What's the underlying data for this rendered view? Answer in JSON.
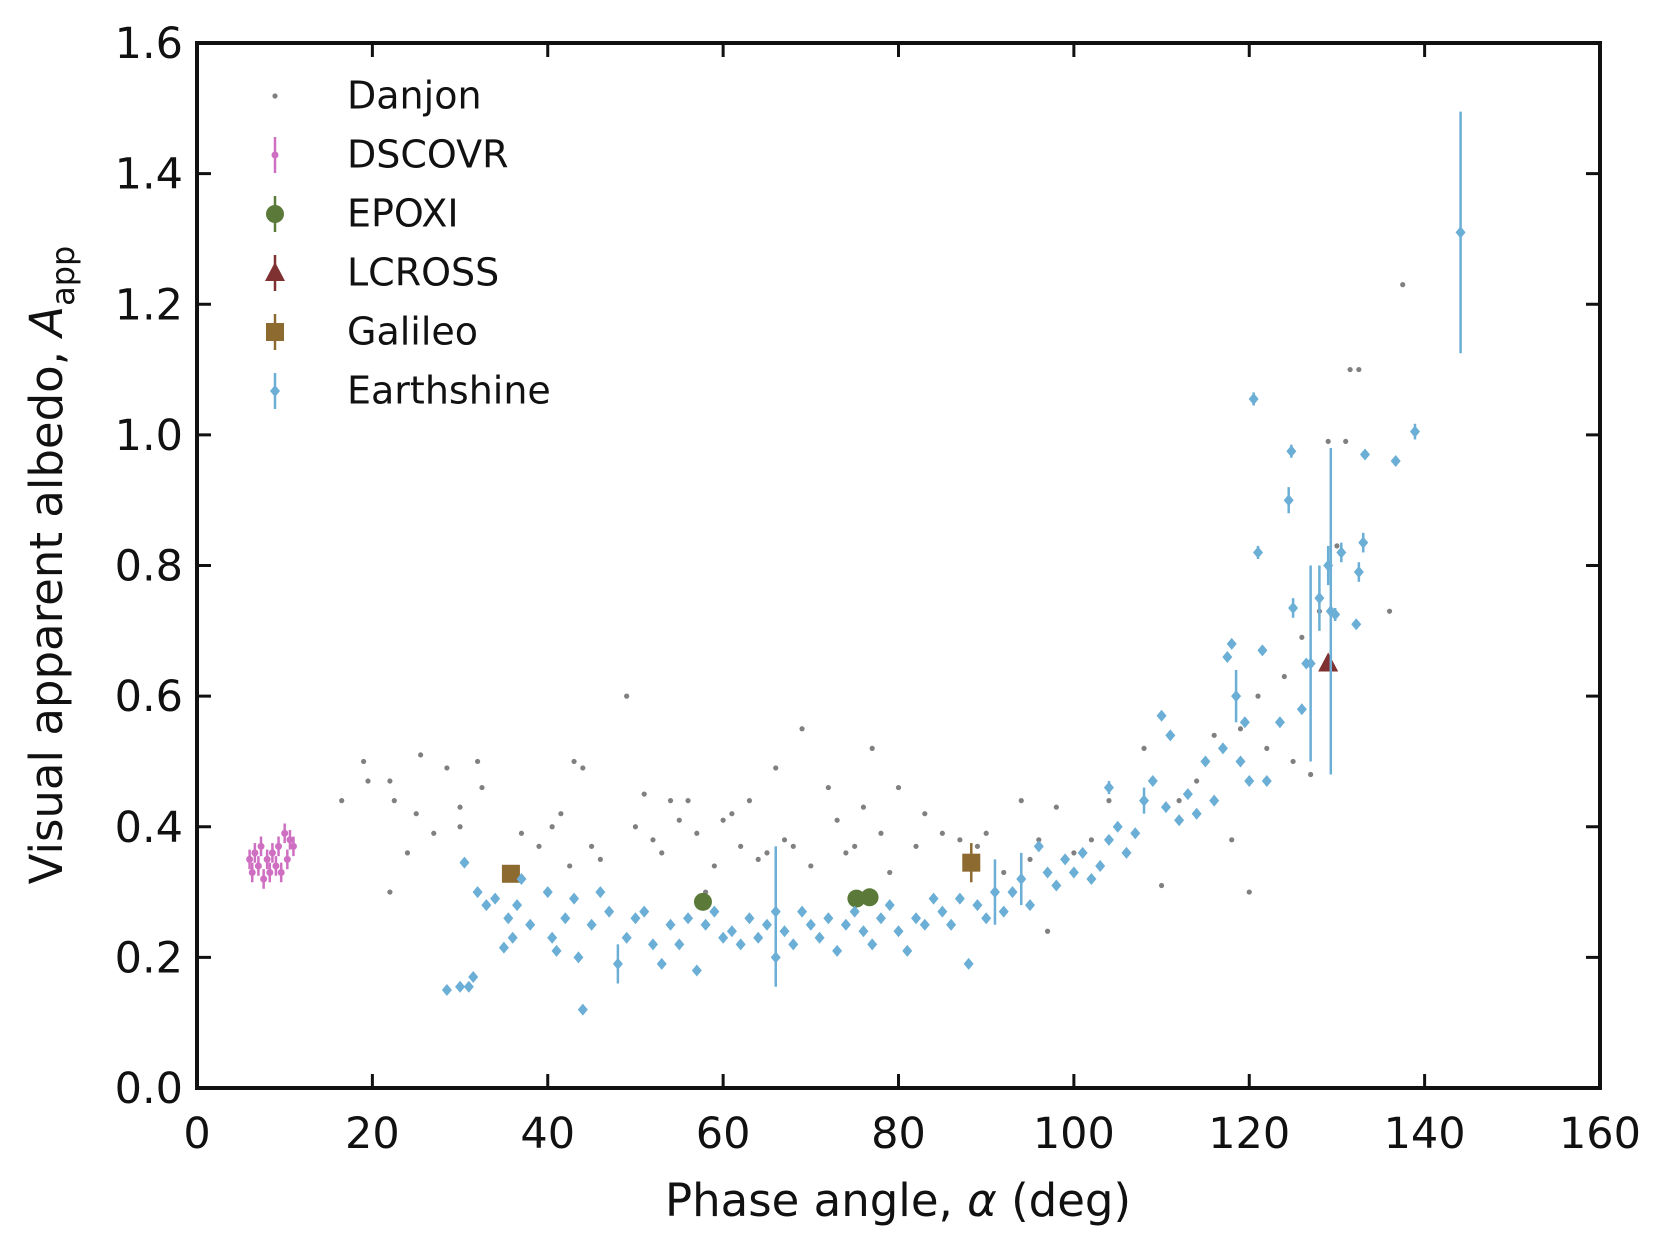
{
  "chart_data": {
    "type": "scatter",
    "xlabel": "Phase angle, ",
    "xlabel_symbol": "α",
    "xlabel_unit": " (deg)",
    "ylabel": "Visual apparent albedo, ",
    "ylabel_symbol": "A",
    "ylabel_subscript": "app",
    "xlim": [
      0,
      160
    ],
    "xticks": [
      0,
      20,
      40,
      60,
      80,
      100,
      120,
      140,
      160
    ],
    "ylim": [
      0,
      1.6
    ],
    "yticks": [
      {
        "value": 0,
        "label": "0.0"
      },
      0.2,
      0.4,
      0.6,
      0.8,
      {
        "value": 1,
        "label": "1.0"
      },
      1.2,
      1.4,
      1.6
    ],
    "tick_direction": "in",
    "legend": "upper left",
    "series": [
      {
        "name": "Danjon",
        "color": "#808080",
        "marker": "dot",
        "x": [
          16.5,
          19,
          19.5,
          22,
          22,
          22.5,
          24,
          25,
          25.5,
          27,
          28.5,
          30,
          30,
          32,
          32.5,
          36,
          37,
          39,
          40.5,
          41.5,
          42.5,
          43,
          44,
          45,
          46,
          49,
          50,
          51,
          52,
          53,
          54,
          55,
          56,
          57,
          58,
          59,
          60,
          61,
          62,
          63,
          64,
          65,
          66,
          67,
          68,
          69,
          70,
          72,
          73,
          74,
          75,
          76,
          77,
          78,
          79,
          80,
          82,
          83,
          85,
          87,
          89,
          90,
          92,
          94,
          95,
          96,
          97,
          98,
          100,
          102,
          104,
          106,
          108,
          110,
          112,
          114,
          116,
          118,
          119,
          120,
          121,
          122,
          124,
          125,
          126,
          127,
          128,
          129,
          130,
          131,
          131.5,
          132.5,
          136,
          137.5
        ],
        "values": [
          0.44,
          0.5,
          0.47,
          0.47,
          0.3,
          0.44,
          0.36,
          0.42,
          0.51,
          0.39,
          0.49,
          0.4,
          0.43,
          0.5,
          0.46,
          0.32,
          0.39,
          0.37,
          0.4,
          0.42,
          0.34,
          0.5,
          0.49,
          0.37,
          0.35,
          0.6,
          0.4,
          0.45,
          0.38,
          0.36,
          0.44,
          0.41,
          0.44,
          0.39,
          0.3,
          0.34,
          0.41,
          0.42,
          0.37,
          0.44,
          0.35,
          0.36,
          0.49,
          0.38,
          0.37,
          0.55,
          0.34,
          0.46,
          0.41,
          0.36,
          0.37,
          0.43,
          0.52,
          0.39,
          0.33,
          0.46,
          0.37,
          0.42,
          0.39,
          0.38,
          0.37,
          0.39,
          0.33,
          0.44,
          0.35,
          0.38,
          0.24,
          0.43,
          0.36,
          0.38,
          0.44,
          0.36,
          0.52,
          0.31,
          0.44,
          0.47,
          0.54,
          0.38,
          0.55,
          0.3,
          0.6,
          0.52,
          0.63,
          0.5,
          0.69,
          0.48,
          0.73,
          0.99,
          0.83,
          0.99,
          1.1,
          1.1,
          0.73,
          1.23
        ]
      },
      {
        "name": "DSCOVR",
        "color": "#cf6fc2",
        "marker": "point",
        "x": [
          6,
          6.3,
          6.6,
          7,
          7.3,
          7.6,
          8,
          8.3,
          8.6,
          9,
          9.3,
          9.6,
          10,
          10.3,
          10.6,
          11
        ],
        "values": [
          0.35,
          0.33,
          0.36,
          0.34,
          0.37,
          0.32,
          0.35,
          0.33,
          0.36,
          0.34,
          0.37,
          0.33,
          0.39,
          0.35,
          0.38,
          0.37
        ],
        "errors": [
          0.015,
          0.015,
          0.015,
          0.015,
          0.015,
          0.015,
          0.015,
          0.015,
          0.015,
          0.015,
          0.015,
          0.015,
          0.015,
          0.015,
          0.015,
          0.015
        ]
      },
      {
        "name": "EPOXI",
        "color": "#5b7a3a",
        "marker": "circle",
        "x": [
          57.7,
          75.2,
          76.7
        ],
        "values": [
          0.285,
          0.29,
          0.292
        ],
        "errors": [
          0.005,
          0.005,
          0.005
        ]
      },
      {
        "name": "LCROSS",
        "color": "#7f3030",
        "marker": "triangle",
        "x": [
          129
        ],
        "values": [
          0.65
        ],
        "errors": [
          0.01
        ]
      },
      {
        "name": "Galileo",
        "color": "#8c6a30",
        "marker": "square",
        "x": [
          35.8,
          88.3
        ],
        "values": [
          0.328,
          0.345
        ],
        "errors": [
          0.01,
          0.03
        ]
      },
      {
        "name": "Earthshine",
        "color": "#6baed6",
        "marker": "diamond",
        "x": [
          28.5,
          30,
          30.5,
          31,
          31.5,
          32,
          33,
          34,
          35,
          35.5,
          36,
          36.5,
          37,
          38,
          40,
          40.5,
          41,
          42,
          43,
          43.5,
          44,
          45,
          46,
          47,
          48,
          49,
          50,
          51,
          52,
          53,
          54,
          55,
          56,
          57,
          58,
          59,
          60,
          61,
          62,
          63,
          64,
          65,
          66,
          66,
          67,
          68,
          69,
          70,
          71,
          72,
          73,
          74,
          75,
          76,
          77,
          78,
          79,
          80,
          81,
          82,
          83,
          84,
          85,
          86,
          87,
          88,
          89,
          90,
          91,
          92,
          93,
          94,
          95,
          96,
          97,
          98,
          99,
          100,
          101,
          102,
          103,
          104,
          104,
          105,
          106,
          107,
          108,
          109,
          110,
          110.5,
          111,
          112,
          113,
          114,
          115,
          116,
          117,
          117.5,
          118,
          118.5,
          119,
          119.5,
          120,
          120.5,
          121,
          121.5,
          122,
          123.5,
          124.5,
          124.8,
          125,
          126,
          126.5,
          127,
          128,
          129,
          129.3,
          129.8,
          130.5,
          132.5,
          132.2,
          133,
          133.2,
          136.7,
          138.9,
          144.1
        ],
        "values": [
          0.15,
          0.155,
          0.345,
          0.155,
          0.17,
          0.3,
          0.28,
          0.29,
          0.215,
          0.26,
          0.23,
          0.28,
          0.32,
          0.25,
          0.3,
          0.23,
          0.21,
          0.26,
          0.29,
          0.2,
          0.12,
          0.25,
          0.3,
          0.27,
          0.19,
          0.23,
          0.26,
          0.27,
          0.22,
          0.19,
          0.25,
          0.22,
          0.26,
          0.18,
          0.25,
          0.27,
          0.23,
          0.24,
          0.22,
          0.26,
          0.23,
          0.25,
          0.2,
          0.27,
          0.24,
          0.22,
          0.27,
          0.25,
          0.23,
          0.26,
          0.21,
          0.25,
          0.27,
          0.24,
          0.22,
          0.26,
          0.28,
          0.24,
          0.21,
          0.26,
          0.25,
          0.29,
          0.27,
          0.25,
          0.29,
          0.19,
          0.28,
          0.26,
          0.3,
          0.27,
          0.3,
          0.32,
          0.28,
          0.37,
          0.33,
          0.31,
          0.35,
          0.33,
          0.36,
          0.32,
          0.34,
          0.38,
          0.46,
          0.4,
          0.36,
          0.39,
          0.44,
          0.47,
          0.57,
          0.43,
          0.54,
          0.41,
          0.45,
          0.42,
          0.5,
          0.44,
          0.52,
          0.66,
          0.68,
          0.6,
          0.5,
          0.56,
          0.47,
          1.055,
          0.82,
          0.67,
          0.47,
          0.56,
          0.9,
          0.975,
          0.735,
          0.58,
          0.65,
          0.65,
          0.75,
          0.8,
          0.73,
          0.725,
          0.82,
          0.79,
          0.71,
          0.835,
          0.97,
          0.96,
          1.005,
          1.31
        ],
        "errors": [
          0.005,
          0.005,
          0.005,
          0.005,
          0.005,
          0.005,
          0.005,
          0.005,
          0.005,
          0.005,
          0.005,
          0.005,
          0.005,
          0.005,
          0.005,
          0.005,
          0.005,
          0.005,
          0.005,
          0.005,
          0.005,
          0.005,
          0.005,
          0.005,
          0.03,
          0.005,
          0.005,
          0.005,
          0.005,
          0.005,
          0.005,
          0.005,
          0.005,
          0.005,
          0.005,
          0.005,
          0.005,
          0.005,
          0.005,
          0.005,
          0.005,
          0.005,
          0.045,
          0.1,
          0.005,
          0.005,
          0.005,
          0.005,
          0.005,
          0.005,
          0.005,
          0.005,
          0.005,
          0.005,
          0.005,
          0.005,
          0.005,
          0.005,
          0.005,
          0.005,
          0.005,
          0.005,
          0.005,
          0.005,
          0.005,
          0.005,
          0.005,
          0.005,
          0.05,
          0.005,
          0.005,
          0.04,
          0.005,
          0.005,
          0.005,
          0.005,
          0.005,
          0.005,
          0.005,
          0.005,
          0.005,
          0.005,
          0.01,
          0.005,
          0.005,
          0.005,
          0.02,
          0.005,
          0.005,
          0.005,
          0.005,
          0.005,
          0.005,
          0.005,
          0.005,
          0.005,
          0.005,
          0.005,
          0.005,
          0.04,
          0.005,
          0.005,
          0.005,
          0.01,
          0.01,
          0.005,
          0.005,
          0.005,
          0.02,
          0.01,
          0.015,
          0.005,
          0.005,
          0.15,
          0.05,
          0.03,
          0.25,
          0.01,
          0.015,
          0.015,
          0.005,
          0.015,
          0.005,
          0.005,
          0.012,
          0.185
        ]
      }
    ]
  }
}
